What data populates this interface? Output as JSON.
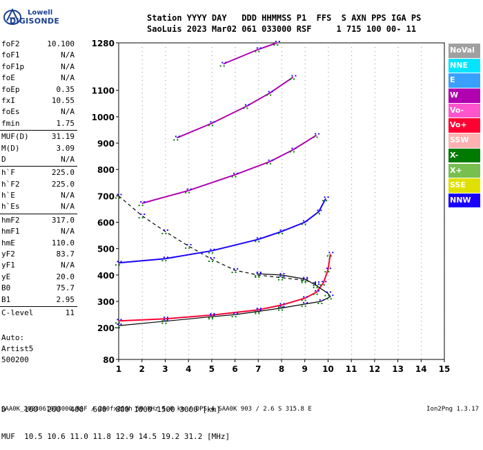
{
  "logo": {
    "line1": "Lowell",
    "line2": "DIGISONDE"
  },
  "header": {
    "line1": "Station YYYY DAY   DDD HHMMSS P1  FFS  S AXN PPS IGA PS",
    "line2": "SaoLuis 2023 Mar02 061 033000 RSF     1 715 100 00- 11"
  },
  "params": [
    [
      {
        "k": "foF2",
        "v": "10.100"
      },
      {
        "k": "foF1",
        "v": "N/A"
      },
      {
        "k": "foF1p",
        "v": "N/A"
      },
      {
        "k": "foE",
        "v": "N/A"
      },
      {
        "k": "foEp",
        "v": "0.35"
      },
      {
        "k": "fxI",
        "v": "10.55"
      },
      {
        "k": "foEs",
        "v": "N/A"
      },
      {
        "k": "fmin",
        "v": "1.75"
      }
    ],
    [
      {
        "k": "MUF(D)",
        "v": "31.19"
      },
      {
        "k": "M(D)",
        "v": "3.09"
      },
      {
        "k": "D",
        "v": "N/A"
      }
    ],
    [
      {
        "k": "h`F",
        "v": "225.0"
      },
      {
        "k": "h`F2",
        "v": "225.0"
      },
      {
        "k": "h`E",
        "v": "N/A"
      },
      {
        "k": "h`Es",
        "v": "N/A"
      }
    ],
    [
      {
        "k": "hmF2",
        "v": "317.0"
      },
      {
        "k": "hmF1",
        "v": "N/A"
      },
      {
        "k": "hmE",
        "v": "110.0"
      },
      {
        "k": "yF2",
        "v": "83.7"
      },
      {
        "k": "yF1",
        "v": "N/A"
      },
      {
        "k": "yE",
        "v": "20.0"
      },
      {
        "k": "B0",
        "v": "75.7"
      },
      {
        "k": "B1",
        "v": "2.95"
      }
    ],
    [
      {
        "k": "C-level",
        "v": "11"
      }
    ]
  ],
  "auto": {
    "line1": "Auto:",
    "line2": "Artist5",
    "line3": "500200"
  },
  "legend": [
    {
      "label": "NoVal",
      "color": "#a0a0a0"
    },
    {
      "label": "NNE",
      "color": "#00e5ff"
    },
    {
      "label": "E",
      "color": "#3aa0ff"
    },
    {
      "label": "W",
      "color": "#b000b0"
    },
    {
      "label": "Vo-",
      "color": "#ff55cc"
    },
    {
      "label": "Vo+",
      "color": "#ff0033"
    },
    {
      "label": "SSW",
      "color": "#ffb0b0"
    },
    {
      "label": "X-",
      "color": "#007a00"
    },
    {
      "label": "X+",
      "color": "#77c050"
    },
    {
      "label": "SSE",
      "color": "#e0e000"
    },
    {
      "label": "NNW",
      "color": "#1a00ff"
    }
  ],
  "muf_table": {
    "line1": "D    100  200  400  600  800 1000 1500 3000 [km]",
    "line2": "MUF  10.5 10.6 11.0 11.8 12.9 14.5 19.2 31.2 [MHz]"
  },
  "footer": "SAA0K_2023061033000.RSF / 280fx256h 50 kHz 5.0 km / DPS-4 SAA0K 903 / 2.6 S 315.8 E",
  "version": "Ion2Png 1.3.17",
  "chart_data": {
    "type": "scatter",
    "xticks": [
      1,
      2,
      3,
      4,
      5,
      6,
      7,
      8,
      9,
      10,
      11,
      12,
      13,
      14,
      15
    ],
    "yticks": [
      80,
      200,
      300,
      400,
      500,
      600,
      700,
      800,
      900,
      1000,
      1100,
      1280
    ],
    "xlim": [
      1,
      15
    ],
    "ylim": [
      80,
      1280
    ],
    "series": [
      {
        "color": "#ff0033",
        "points": [
          [
            1,
            226
          ],
          [
            3,
            234
          ],
          [
            5,
            248
          ],
          [
            7,
            268
          ],
          [
            8,
            286
          ],
          [
            9,
            312
          ],
          [
            9.5,
            335
          ],
          [
            9.8,
            370
          ],
          [
            10,
            420
          ],
          [
            10.1,
            480
          ]
        ]
      },
      {
        "color": "#000000",
        "points": [
          [
            1,
            208
          ],
          [
            3,
            225
          ],
          [
            5,
            242
          ],
          [
            6,
            250
          ],
          [
            7,
            262
          ],
          [
            8,
            275
          ],
          [
            9,
            290
          ],
          [
            9.7,
            300
          ],
          [
            10.1,
            318
          ],
          [
            10,
            330
          ],
          [
            9.5,
            360
          ],
          [
            9,
            385
          ],
          [
            8,
            400
          ],
          [
            7,
            405
          ]
        ]
      },
      {
        "color": "#000000",
        "dash": true,
        "points": [
          [
            1,
            700
          ],
          [
            2,
            625
          ],
          [
            3,
            565
          ],
          [
            4,
            510
          ],
          [
            5,
            460
          ],
          [
            6,
            418
          ],
          [
            7,
            400
          ],
          [
            8,
            390
          ],
          [
            9,
            380
          ],
          [
            9.5,
            368
          ]
        ]
      },
      {
        "color": "#1a00ff",
        "points": [
          [
            1,
            446
          ],
          [
            3,
            462
          ],
          [
            5,
            492
          ],
          [
            7,
            535
          ],
          [
            8,
            565
          ],
          [
            9,
            600
          ],
          [
            9.6,
            640
          ],
          [
            9.9,
            690
          ]
        ]
      },
      {
        "color": "#b000b0",
        "points": [
          [
            2,
            672
          ],
          [
            4,
            720
          ],
          [
            6,
            780
          ],
          [
            7.5,
            830
          ],
          [
            8.5,
            875
          ],
          [
            9.5,
            930
          ]
        ]
      },
      {
        "color": "#b000b0",
        "points": [
          [
            3.5,
            920
          ],
          [
            5,
            975
          ],
          [
            6.5,
            1040
          ],
          [
            7.5,
            1090
          ],
          [
            8.5,
            1150
          ]
        ]
      },
      {
        "color": "#b000b0",
        "points": [
          [
            5.5,
            1200
          ],
          [
            7,
            1255
          ],
          [
            7.8,
            1280
          ]
        ]
      }
    ]
  }
}
